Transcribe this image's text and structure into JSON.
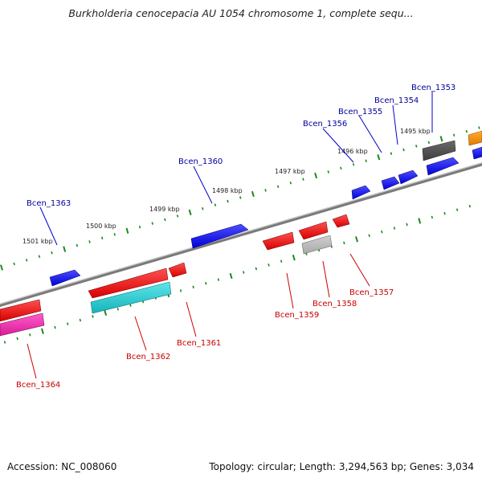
{
  "title": "Burkholderia cenocepacia AU 1054 chromosome 1, complete sequ...",
  "footer": {
    "accession": "Accession: NC_008060",
    "summary": "Topology: circular; Length: 3,294,563 bp; Genes: 3,034"
  },
  "colors": {
    "forward_gene": "#0000ee",
    "reverse_gene": "#ee0000",
    "forward_label": "#00009c",
    "reverse_label": "#c80000",
    "backbone": "#808080",
    "tick": "#1a8a1a"
  },
  "kbp_labels": [
    "1501 kbp",
    "1500 kbp",
    "1499 kbp",
    "1498 kbp",
    "1497 kbp",
    "1496 kbp",
    "1495 kbp"
  ],
  "forward_genes": [
    "Bcen_1363",
    "Bcen_1360",
    "Bcen_1356",
    "Bcen_1355",
    "Bcen_1354",
    "Bcen_1353"
  ],
  "reverse_genes": [
    "Bcen_1364",
    "Bcen_1362",
    "Bcen_1361",
    "Bcen_1359",
    "Bcen_1358",
    "Bcen_1357"
  ]
}
